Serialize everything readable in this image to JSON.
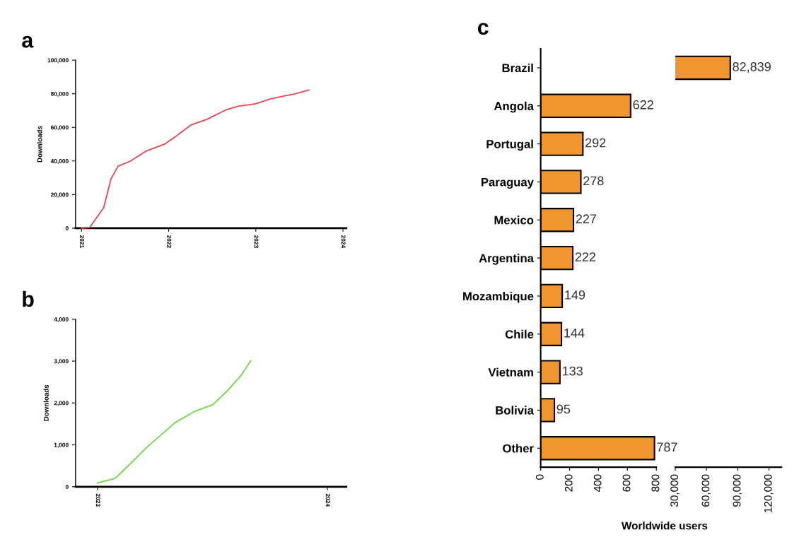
{
  "chart_data": [
    {
      "type": "line",
      "title": "a",
      "ylabel": "Downloads",
      "xlim": [
        "2020-12-07",
        "2024-01-15"
      ],
      "xticks": [
        {
          "value": "2021-01-01",
          "label": "2021"
        },
        {
          "value": "2022-01-01",
          "label": "2022"
        },
        {
          "value": "2023-01-01",
          "label": "2023"
        },
        {
          "value": "2024-01-01",
          "label": "2024"
        }
      ],
      "ylim": [
        0,
        100000
      ],
      "yticks": [
        {
          "value": 0,
          "label": "0"
        },
        {
          "value": 20000,
          "label": "20,000"
        },
        {
          "value": 40000,
          "label": "40,000"
        },
        {
          "value": 60000,
          "label": "60,000"
        },
        {
          "value": 80000,
          "label": "80,000"
        },
        {
          "value": 100000,
          "label": "100,000"
        }
      ],
      "grid": false,
      "legend": false,
      "marker": "none",
      "line_style": "solid",
      "series": [
        {
          "color": "#e8474f",
          "x": [
            "2021-01-01",
            "2021-02-04",
            "2021-04-04",
            "2021-05-04",
            "2021-06-03",
            "2021-07-22",
            "2021-09-30",
            "2021-12-17",
            "2022-02-04",
            "2022-04-04",
            "2022-06-12",
            "2022-08-30",
            "2022-10-19",
            "2023-01-01",
            "2023-03-01",
            "2023-05-09",
            "2023-06-08",
            "2023-08-11"
          ],
          "values": [
            0,
            400,
            12300,
            29200,
            36900,
            39700,
            46000,
            50200,
            55100,
            61400,
            64900,
            70500,
            72600,
            74000,
            76900,
            79000,
            79700,
            82200
          ]
        }
      ]
    },
    {
      "type": "line",
      "title": "b",
      "ylabel": "Downloads",
      "xlim": [
        "2022-11-27",
        "2024-01-31"
      ],
      "xticks": [
        {
          "value": "2023-01-01",
          "label": "2023"
        },
        {
          "value": "2024-01-01",
          "label": "2024"
        }
      ],
      "ylim": [
        0,
        4000
      ],
      "yticks": [
        {
          "value": 0,
          "label": "0"
        },
        {
          "value": 1000,
          "label": "1,000"
        },
        {
          "value": 2000,
          "label": "2,000"
        },
        {
          "value": 3000,
          "label": "3,000"
        },
        {
          "value": 4000,
          "label": "4,000"
        }
      ],
      "grid": false,
      "legend": false,
      "marker": "none",
      "line_style": "solid",
      "series": [
        {
          "color": "#6fd84a",
          "x": [
            "2023-01-01",
            "2023-01-29",
            "2023-02-18",
            "2023-03-20",
            "2023-05-04",
            "2023-06-03",
            "2023-07-03",
            "2023-07-26",
            "2023-08-17",
            "2023-09-01"
          ],
          "values": [
            90,
            200,
            490,
            940,
            1530,
            1790,
            1960,
            2290,
            2660,
            3010
          ]
        }
      ]
    },
    {
      "type": "bar",
      "title": "c",
      "orientation": "horizontal",
      "categories": [
        "Brazil",
        "Angola",
        "Portugal",
        "Paraguay",
        "Mexico",
        "Argentina",
        "Mozambique",
        "Chile",
        "Vietnam",
        "Bolivia",
        "Other"
      ],
      "xlim": [
        0,
        800
      ],
      "xticks": [
        0,
        200,
        400,
        600,
        800
      ],
      "grid": false,
      "legend": false,
      "series": [
        {
          "color": "#f0962e",
          "values": [
            null,
            622,
            292,
            278,
            227,
            222,
            149,
            144,
            133,
            95,
            787
          ],
          "value_labels": [
            null,
            "622",
            "292",
            "278",
            "227",
            "222",
            "149",
            "144",
            "133",
            "95",
            "787"
          ]
        }
      ]
    },
    {
      "type": "bar",
      "xlabel": "Worldwide users",
      "orientation": "horizontal",
      "categories": [
        null,
        null,
        null,
        null,
        null,
        null,
        null,
        null,
        null,
        null,
        null
      ],
      "xlim": [
        30000,
        132000
      ],
      "xticks": [
        {
          "value": 30000,
          "label": "30,000"
        },
        {
          "value": 60000,
          "label": "60,000"
        },
        {
          "value": 90000,
          "label": "90,000"
        },
        {
          "value": 120000,
          "label": "120,000"
        }
      ],
      "tick_labels": "x",
      "grid": false,
      "legend": false,
      "series": [
        {
          "color": "#f0962e",
          "values": [
            82839,
            null,
            null,
            null,
            null,
            null,
            null,
            null,
            null,
            null,
            null
          ],
          "value_labels": [
            "82,839",
            null,
            null,
            null,
            null,
            null,
            null,
            null,
            null,
            null,
            null
          ]
        }
      ]
    }
  ]
}
